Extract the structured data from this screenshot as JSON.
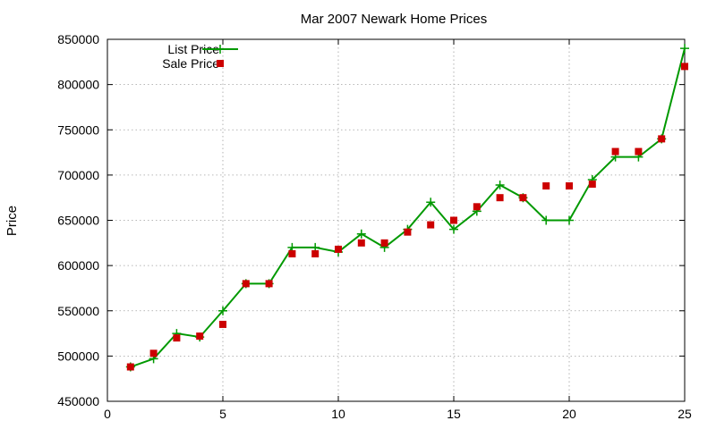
{
  "chart_data": {
    "type": "line",
    "title": "Mar 2007 Newark Home Prices",
    "xlabel": "",
    "ylabel": "Price",
    "xlim": [
      0,
      25
    ],
    "ylim": [
      450000,
      850000
    ],
    "xticks": [
      0,
      5,
      10,
      15,
      20,
      25
    ],
    "yticks": [
      450000,
      500000,
      550000,
      600000,
      650000,
      700000,
      750000,
      800000,
      850000
    ],
    "grid": true,
    "legend_position": "top-left",
    "series": [
      {
        "name": "List Price",
        "style": "line-with-plus-markers",
        "color": "#009900",
        "points": [
          [
            1,
            488000
          ],
          [
            2,
            497000
          ],
          [
            3,
            525000
          ],
          [
            4,
            521000
          ],
          [
            5,
            550000
          ],
          [
            6,
            580000
          ],
          [
            7,
            580000
          ],
          [
            8,
            620000
          ],
          [
            9,
            620000
          ],
          [
            10,
            615000
          ],
          [
            11,
            635000
          ],
          [
            12,
            620000
          ],
          [
            13,
            640000
          ],
          [
            14,
            670000
          ],
          [
            15,
            640000
          ],
          [
            16,
            660000
          ],
          [
            17,
            689000
          ],
          [
            18,
            675000
          ],
          [
            19,
            650000
          ],
          [
            20,
            650000
          ],
          [
            21,
            695000
          ],
          [
            22,
            720000
          ],
          [
            23,
            720000
          ],
          [
            24,
            740000
          ],
          [
            25,
            840000
          ]
        ]
      },
      {
        "name": "Sale Price",
        "style": "square-markers",
        "color": "#cc0000",
        "points": [
          [
            1,
            488000
          ],
          [
            2,
            503000
          ],
          [
            3,
            520000
          ],
          [
            4,
            522000
          ],
          [
            5,
            535000
          ],
          [
            6,
            580000
          ],
          [
            7,
            580000
          ],
          [
            8,
            613000
          ],
          [
            9,
            613000
          ],
          [
            10,
            618000
          ],
          [
            11,
            625000
          ],
          [
            12,
            625000
          ],
          [
            13,
            637000
          ],
          [
            14,
            645000
          ],
          [
            15,
            650000
          ],
          [
            16,
            665000
          ],
          [
            17,
            675000
          ],
          [
            18,
            675000
          ],
          [
            19,
            688000
          ],
          [
            20,
            688000
          ],
          [
            21,
            690000
          ],
          [
            22,
            726000
          ],
          [
            23,
            726000
          ],
          [
            24,
            740000
          ],
          [
            25,
            820000
          ]
        ]
      }
    ]
  }
}
